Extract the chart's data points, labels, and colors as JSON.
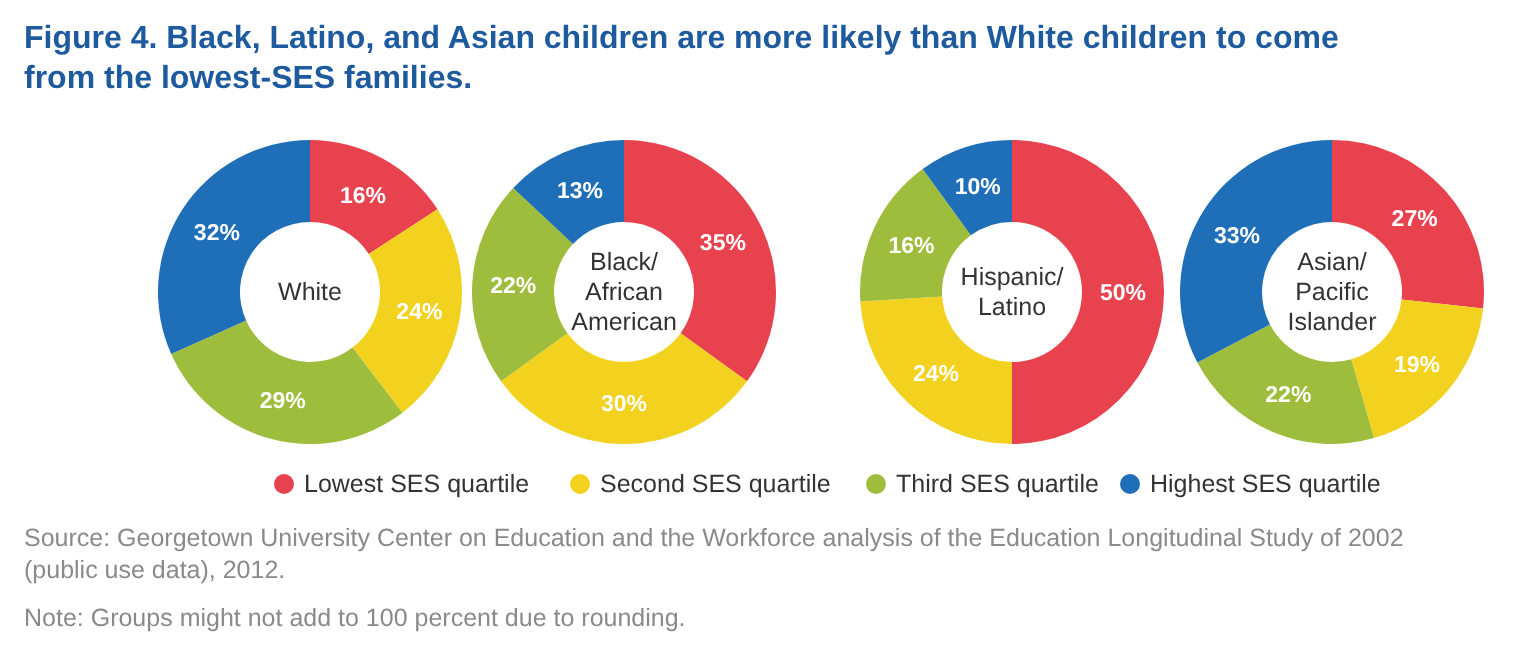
{
  "chart_data": [
    {
      "type": "other",
      "title": "Figure 4. Black, Latino, and Asian children are more likely than White children to come from the lowest-SES families.",
      "annotations": [
        "Source: Georgetown University Center on Education and the Workforce analysis of the Education Longitudinal Study of 2002 (public use data), 2012.",
        "Note: Groups might not add to 100 percent due to rounding."
      ]
    },
    {
      "type": "donut",
      "title": "White",
      "categories": [
        "Lowest SES quartile",
        "Second SES quartile",
        "Third SES quartile",
        "Highest SES quartile"
      ],
      "values": [
        16,
        24,
        29,
        32
      ],
      "value_labels": [
        "16%",
        "24%",
        "29%",
        "32%"
      ],
      "colors": [
        "#e8424f",
        "#f2d21e",
        "#9ebd3c",
        "#1f6fb8"
      ],
      "legend": "bottom"
    },
    {
      "type": "donut",
      "title": "Black/ African American",
      "categories": [
        null,
        null,
        null,
        null
      ],
      "values": [
        35,
        30,
        22,
        13
      ],
      "value_labels": [
        "35%",
        "30%",
        "22%",
        "13%"
      ],
      "colors": [
        "#e8424f",
        "#f2d21e",
        "#9ebd3c",
        "#1f6fb8"
      ]
    },
    {
      "type": "donut",
      "title": "Hispanic/ Latino",
      "categories": [
        null,
        null,
        null,
        null
      ],
      "values": [
        50,
        24,
        16,
        10
      ],
      "value_labels": [
        "50%",
        "24%",
        "16%",
        "10%"
      ],
      "colors": [
        "#e8424f",
        "#f2d21e",
        "#9ebd3c",
        "#1f6fb8"
      ]
    },
    {
      "type": "donut",
      "title": "Asian/ Pacific Islander",
      "categories": [
        null,
        null,
        null,
        null
      ],
      "values": [
        27,
        19,
        22,
        33
      ],
      "value_labels": [
        "27%",
        "19%",
        "22%",
        "33%"
      ],
      "colors": [
        "#e8424f",
        "#f2d21e",
        "#9ebd3c",
        "#1f6fb8"
      ]
    }
  ]
}
